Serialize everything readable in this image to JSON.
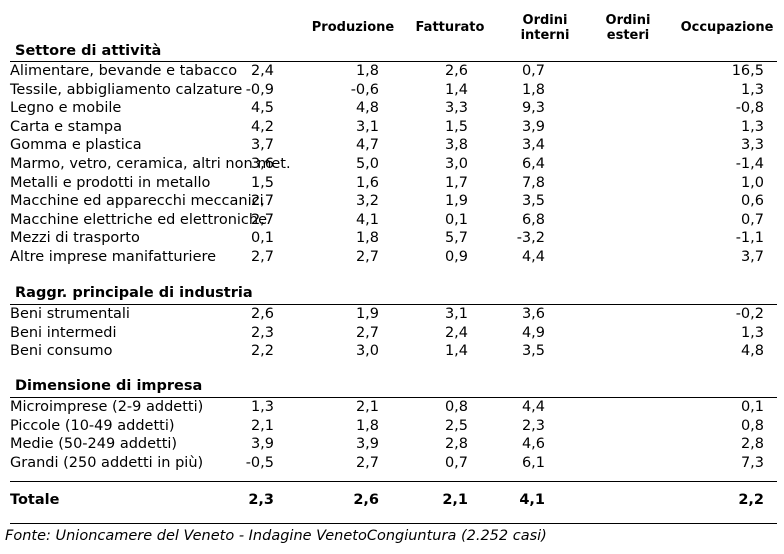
{
  "headers": {
    "produzione": "Produzione",
    "fatturato": "Fatturato",
    "ordini_interni_1": "Ordini",
    "ordini_interni_2": "interni",
    "ordini_esteri_1": "Ordini",
    "ordini_esteri_2": "esteri",
    "occupazione": "Occupazione"
  },
  "sections": [
    {
      "title": "Settore di attività",
      "rows": [
        {
          "label": "Alimentare, bevande e tabacco",
          "values": [
            "2,4",
            "1,8",
            "2,6",
            "0,7",
            "16,5"
          ]
        },
        {
          "label": "Tessile, abbigliamento calzature",
          "values": [
            "-0,9",
            "-0,6",
            "1,4",
            "1,8",
            "1,3"
          ]
        },
        {
          "label": "Legno e mobile",
          "values": [
            "4,5",
            "4,8",
            "3,3",
            "9,3",
            "-0,8"
          ]
        },
        {
          "label": "Carta e stampa",
          "values": [
            "4,2",
            "3,1",
            "1,5",
            "3,9",
            "1,3"
          ]
        },
        {
          "label": "Gomma e plastica",
          "values": [
            "3,7",
            "4,7",
            "3,8",
            "3,4",
            "3,3"
          ]
        },
        {
          "label": "Marmo, vetro, ceramica, altri non met.",
          "values": [
            "3,6",
            "5,0",
            "3,0",
            "6,4",
            "-1,4"
          ]
        },
        {
          "label": "Metalli e prodotti in metallo",
          "values": [
            "1,5",
            "1,6",
            "1,7",
            "7,8",
            "1,0"
          ]
        },
        {
          "label": "Macchine ed apparecchi meccanici",
          "values": [
            "2,7",
            "3,2",
            "1,9",
            "3,5",
            "0,6"
          ]
        },
        {
          "label": "Macchine elettriche ed elettroniche",
          "values": [
            "2,7",
            "4,1",
            "0,1",
            "6,8",
            "0,7"
          ]
        },
        {
          "label": "Mezzi di trasporto",
          "values": [
            "0,1",
            "1,8",
            "5,7",
            "-3,2",
            "-1,1"
          ]
        },
        {
          "label": "Altre imprese manifatturiere",
          "values": [
            "2,7",
            "2,7",
            "0,9",
            "4,4",
            "3,7"
          ]
        }
      ]
    },
    {
      "title": "Raggr. principale di industria",
      "rows": [
        {
          "label": "Beni strumentali",
          "values": [
            "2,6",
            "1,9",
            "3,1",
            "3,6",
            "-0,2"
          ]
        },
        {
          "label": "Beni intermedi",
          "values": [
            "2,3",
            "2,7",
            "2,4",
            "4,9",
            "1,3"
          ]
        },
        {
          "label": "Beni consumo",
          "values": [
            "2,2",
            "3,0",
            "1,4",
            "3,5",
            "4,8"
          ]
        }
      ]
    },
    {
      "title": "Dimensione di impresa",
      "rows": [
        {
          "label": "Microimprese (2-9 addetti)",
          "values": [
            "1,3",
            "2,1",
            "0,8",
            "4,4",
            "0,1"
          ]
        },
        {
          "label": "Piccole (10-49 addetti)",
          "values": [
            "2,1",
            "1,8",
            "2,5",
            "2,3",
            "0,8"
          ]
        },
        {
          "label": "Medie (50-249 addetti)",
          "values": [
            "3,9",
            "3,9",
            "2,8",
            "4,6",
            "2,8"
          ]
        },
        {
          "label": "Grandi (250 addetti in più)",
          "values": [
            "-0,5",
            "2,7",
            "0,7",
            "6,1",
            "7,3"
          ]
        }
      ]
    }
  ],
  "total": {
    "label": "Totale",
    "values": [
      "2,3",
      "2,6",
      "2,1",
      "4,1",
      "2,2"
    ]
  },
  "source": "Fonte: Unioncamere del Veneto - Indagine VenetoCongiuntura (2.252 casi)"
}
